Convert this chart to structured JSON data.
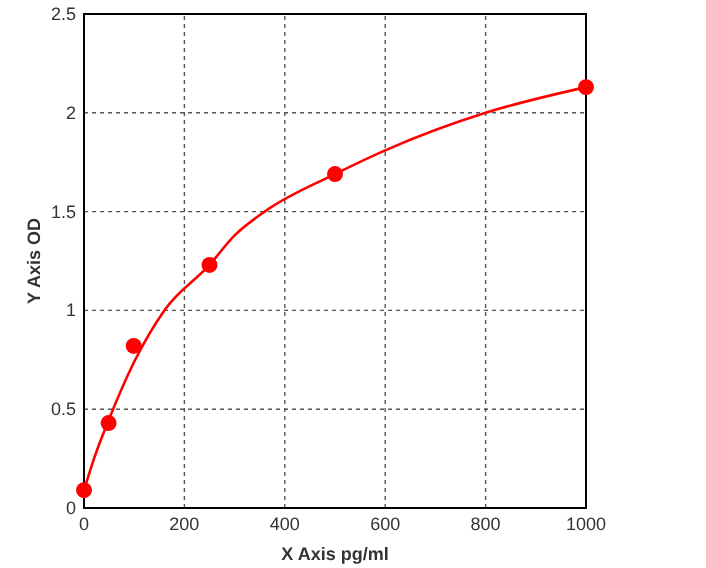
{
  "chart_data": {
    "type": "scatter",
    "xlabel": "X Axis pg/ml",
    "ylabel": "Y Axis OD",
    "xlim": [
      0,
      1000
    ],
    "ylim": [
      0,
      2.5
    ],
    "xticks": [
      0,
      200,
      400,
      600,
      800,
      1000
    ],
    "yticks": [
      0,
      0.5,
      1,
      1.5,
      2,
      2.5
    ],
    "grid": true,
    "series": [
      {
        "type": "line",
        "marker": "none",
        "color": "#ff0000",
        "x": [
          0,
          20,
          50,
          100,
          160,
          250,
          300,
          360,
          500,
          600,
          800,
          1000
        ],
        "values": [
          0.09,
          0.25,
          0.45,
          0.74,
          1.0,
          1.23,
          1.38,
          1.5,
          1.69,
          1.81,
          2.0,
          2.13
        ]
      },
      {
        "marker": "circle",
        "color": "#ff0000",
        "x": [
          0,
          49,
          99,
          250,
          500,
          1000
        ],
        "values": [
          0.09,
          0.43,
          0.82,
          1.23,
          1.69,
          2.13
        ]
      }
    ]
  }
}
